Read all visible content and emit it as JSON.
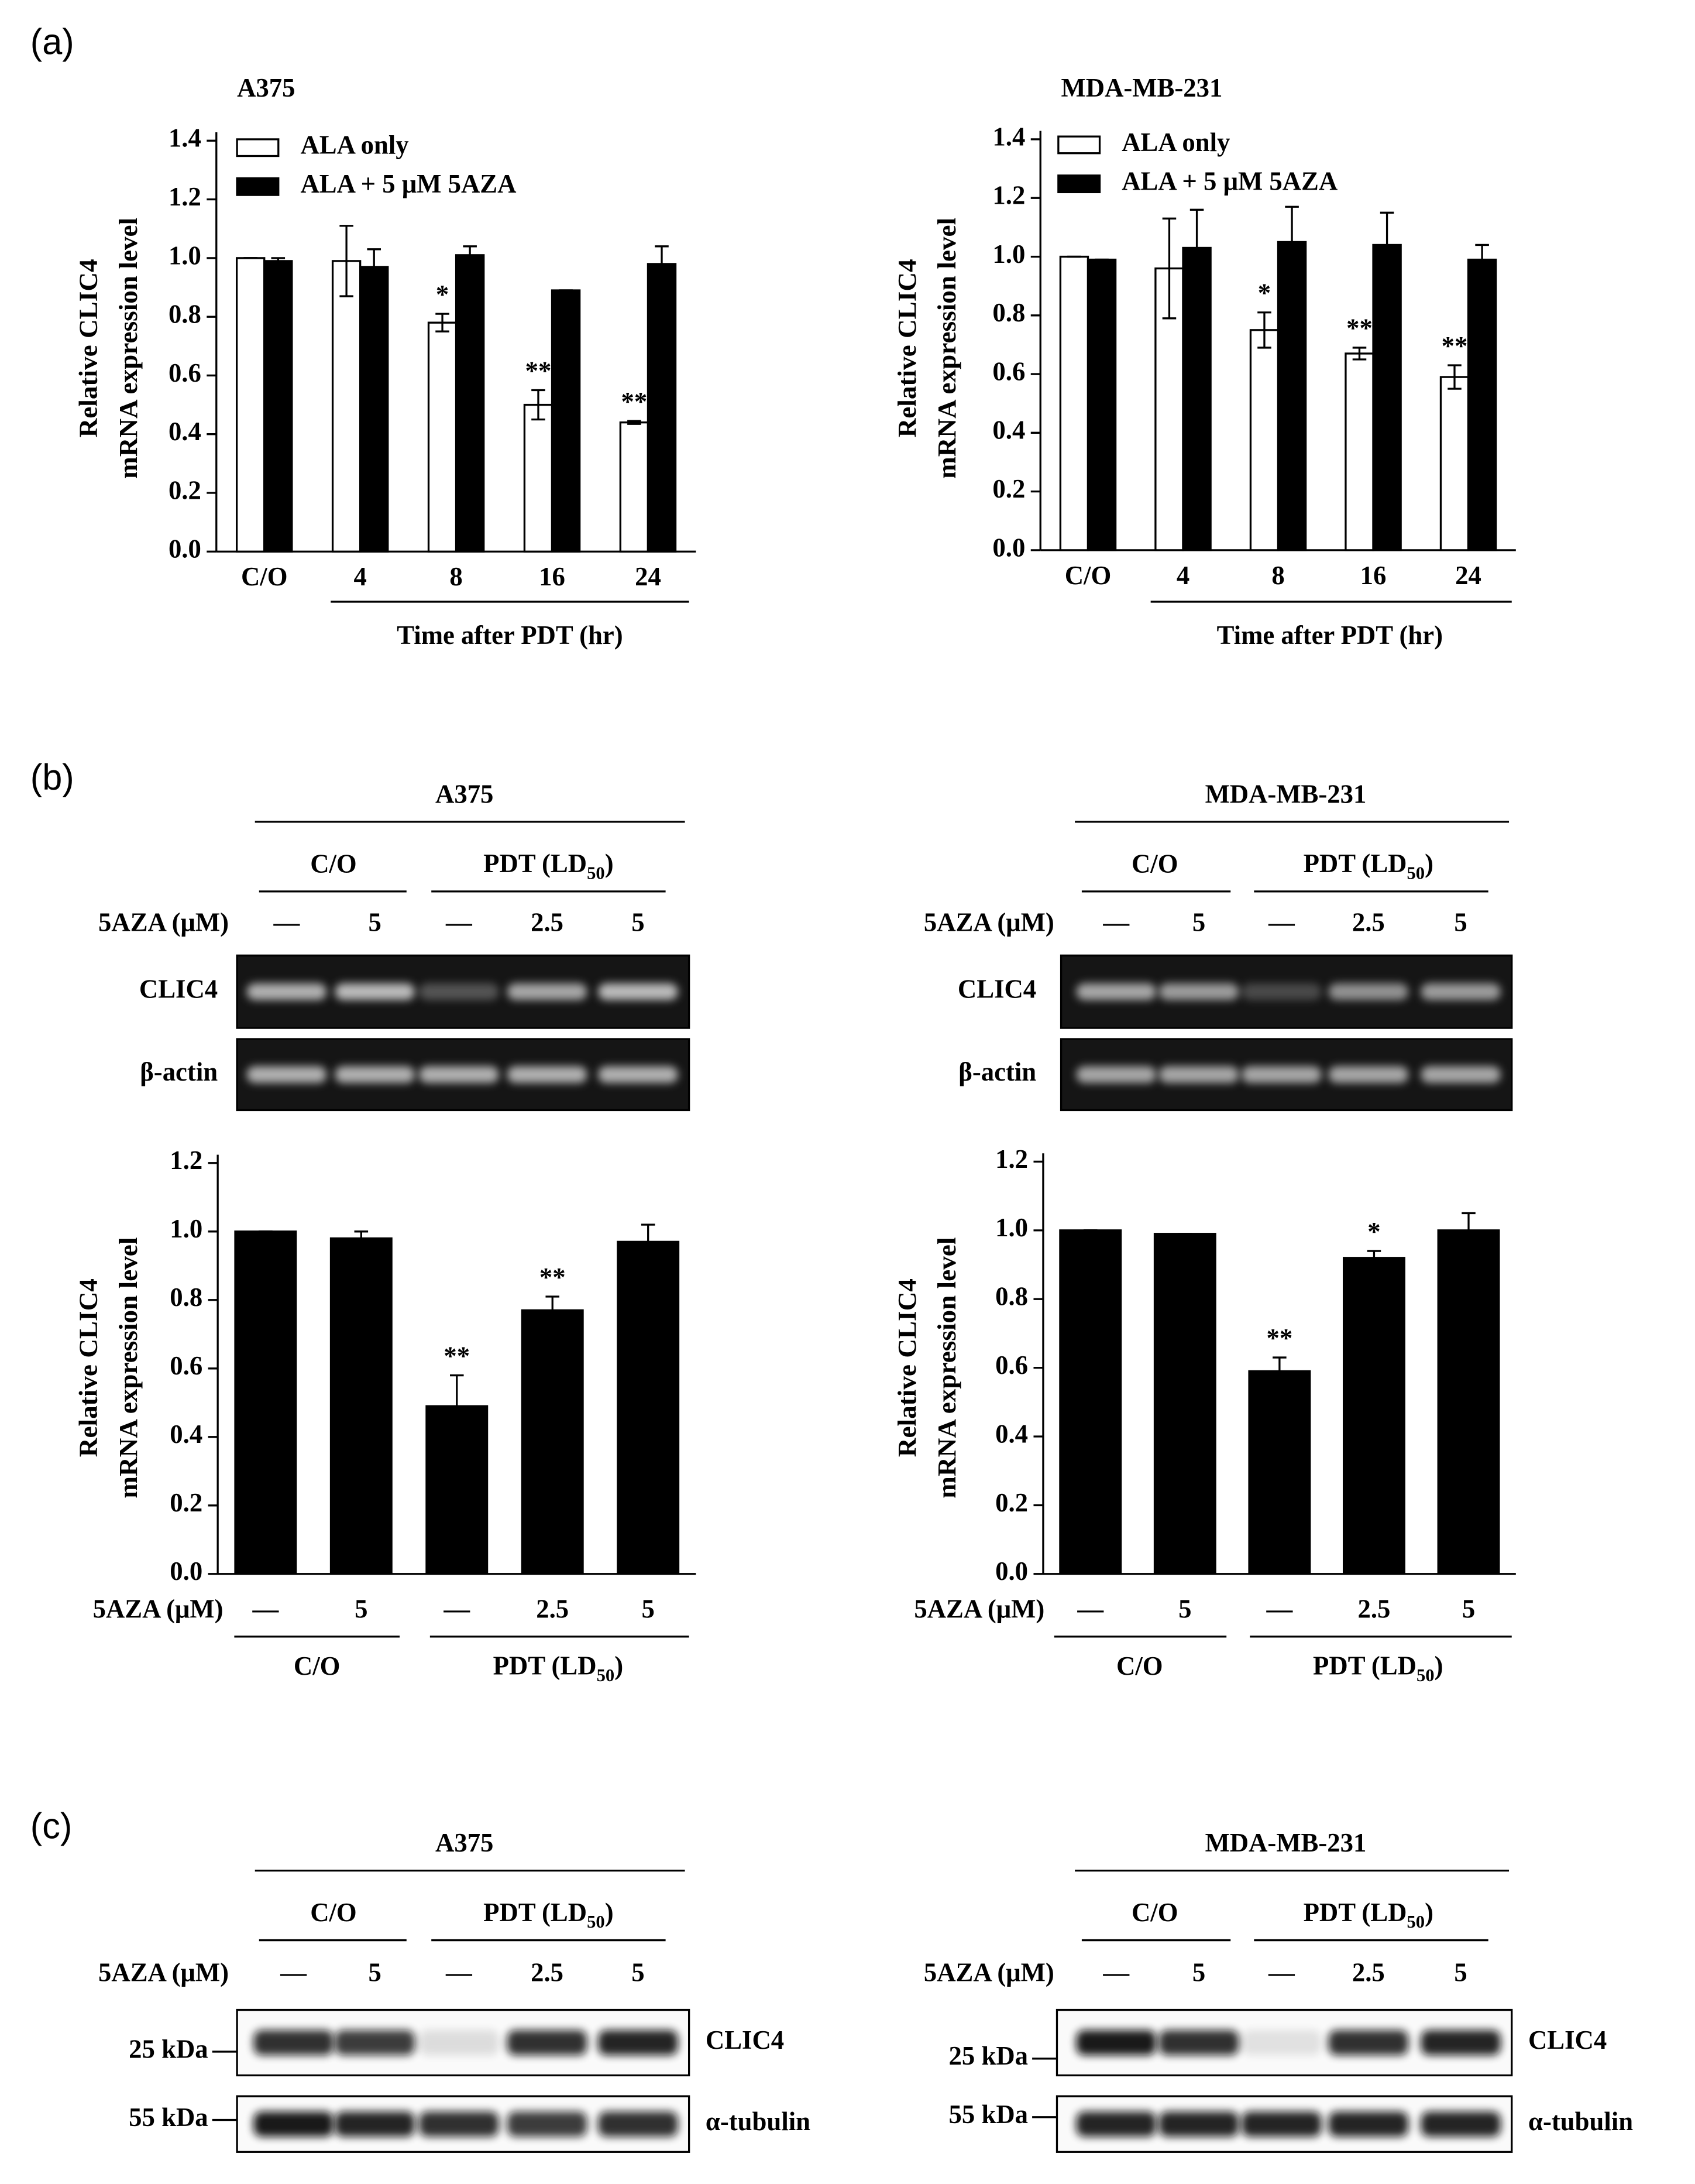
{
  "panel_labels": [
    "(a)",
    "(b)",
    "(c)"
  ],
  "chart_data": [
    {
      "type": "bar",
      "title": "A375",
      "ylabel": [
        "Relative CLIC4",
        "mRNA expression level"
      ],
      "xlabel": "Time after PDT (hr)",
      "categories": [
        "C/O",
        "4",
        "8",
        "16",
        "24"
      ],
      "series": [
        {
          "name": "ALA only",
          "color": "#ffffff",
          "values": [
            1.0,
            0.99,
            0.78,
            0.5,
            0.44
          ],
          "errors": [
            0.0,
            0.12,
            0.03,
            0.05,
            0.005
          ],
          "annotations": [
            null,
            null,
            "*",
            "**",
            "**"
          ]
        },
        {
          "name": "ALA + 5 μM 5AZA",
          "color": "#000000",
          "values": [
            0.99,
            0.97,
            1.01,
            0.89,
            0.98
          ],
          "errors": [
            0.01,
            0.06,
            0.03,
            0.0,
            0.06
          ],
          "annotations": [
            null,
            null,
            null,
            null,
            null
          ]
        }
      ],
      "ylim": [
        0,
        1.4
      ],
      "yticks": [
        {
          "value": 0,
          "label": "0.0"
        },
        {
          "value": 0.2,
          "label": "0.2"
        },
        {
          "value": 0.4,
          "label": "0.4"
        },
        {
          "value": 0.6,
          "label": "0.6"
        },
        {
          "value": 0.8,
          "label": "0.8"
        },
        {
          "value": 1.0,
          "label": "1.0"
        },
        {
          "value": 1.2,
          "label": "1.2"
        },
        {
          "value": 1.4,
          "label": "1.4"
        }
      ],
      "legend": "upper left",
      "grid": false
    },
    {
      "type": "bar",
      "title": "MDA-MB-231",
      "ylabel": [
        "Relative CLIC4",
        "mRNA expression level"
      ],
      "xlabel": "Time after PDT (hr)",
      "categories": [
        "C/O",
        "4",
        "8",
        "16",
        "24"
      ],
      "series": [
        {
          "name": "ALA only",
          "color": "#ffffff",
          "values": [
            1.0,
            0.96,
            0.75,
            0.67,
            0.59
          ],
          "errors": [
            0.0,
            0.17,
            0.06,
            0.02,
            0.04
          ],
          "annotations": [
            null,
            null,
            "*",
            "**",
            "**"
          ]
        },
        {
          "name": "ALA + 5 μM 5AZA",
          "color": "#000000",
          "values": [
            0.99,
            1.03,
            1.05,
            1.04,
            0.99
          ],
          "errors": [
            0.0,
            0.13,
            0.12,
            0.11,
            0.05
          ],
          "annotations": [
            null,
            null,
            null,
            null,
            null
          ]
        }
      ],
      "ylim": [
        0,
        1.4
      ],
      "yticks": [
        {
          "value": 0,
          "label": "0.0"
        },
        {
          "value": 0.2,
          "label": "0.2"
        },
        {
          "value": 0.4,
          "label": "0.4"
        },
        {
          "value": 0.6,
          "label": "0.6"
        },
        {
          "value": 0.8,
          "label": "0.8"
        },
        {
          "value": 1.0,
          "label": "1.0"
        },
        {
          "value": 1.2,
          "label": "1.2"
        },
        {
          "value": 1.4,
          "label": "1.4"
        }
      ],
      "legend": "upper left",
      "grid": false
    },
    {
      "type": "bar",
      "ylabel": [
        "Relative CLIC4",
        "mRNA expression level"
      ],
      "row_label": "5AZA (μM)",
      "categories": [
        "—",
        "5",
        "—",
        "2.5",
        "5"
      ],
      "groups": [
        "C/O",
        [
          "PDT (LD",
          "50",
          ")"
        ]
      ],
      "color": "#000000",
      "values": [
        1.0,
        0.98,
        0.49,
        0.77,
        0.97
      ],
      "errors": [
        0.0,
        0.02,
        0.09,
        0.04,
        0.05
      ],
      "annotations": [
        null,
        null,
        "**",
        "**",
        null
      ],
      "ylim": [
        0,
        1.2
      ],
      "yticks": [
        {
          "value": 0,
          "label": "0.0"
        },
        {
          "value": 0.2,
          "label": "0.2"
        },
        {
          "value": 0.4,
          "label": "0.4"
        },
        {
          "value": 0.6,
          "label": "0.6"
        },
        {
          "value": 0.8,
          "label": "0.8"
        },
        {
          "value": 1.0,
          "label": "1.0"
        },
        {
          "value": 1.2,
          "label": "1.2"
        }
      ],
      "grid": false
    },
    {
      "type": "bar",
      "ylabel": [
        "Relative CLIC4",
        "mRNA expression level"
      ],
      "row_label": "5AZA (μM)",
      "categories": [
        "—",
        "5",
        "—",
        "2.5",
        "5"
      ],
      "groups": [
        "C/O",
        [
          "PDT (LD",
          "50",
          ")"
        ]
      ],
      "color": "#000000",
      "values": [
        1.0,
        0.99,
        0.59,
        0.92,
        1.0
      ],
      "errors": [
        0.0,
        0.0,
        0.04,
        0.02,
        0.05
      ],
      "annotations": [
        null,
        null,
        "**",
        "*",
        null
      ],
      "ylim": [
        0,
        1.2
      ],
      "yticks": [
        {
          "value": 0,
          "label": "0.0"
        },
        {
          "value": 0.2,
          "label": "0.2"
        },
        {
          "value": 0.4,
          "label": "0.4"
        },
        {
          "value": 0.6,
          "label": "0.6"
        },
        {
          "value": 0.8,
          "label": "0.8"
        },
        {
          "value": 1.0,
          "label": "1.0"
        },
        {
          "value": 1.2,
          "label": "1.2"
        }
      ],
      "grid": false
    }
  ],
  "gels": [
    {
      "title": "A375",
      "groups": [
        "C/O",
        [
          "PDT (LD",
          "50",
          ")"
        ]
      ],
      "row_label": "5AZA (μM)",
      "lanes": [
        "—",
        "5",
        "—",
        "2.5",
        "5"
      ],
      "bands": [
        "CLIC4",
        "β-actin"
      ]
    },
    {
      "title": "MDA-MB-231",
      "groups": [
        "C/O",
        [
          "PDT (LD",
          "50",
          ")"
        ]
      ],
      "row_label": "5AZA (μM)",
      "lanes": [
        "—",
        "5",
        "—",
        "2.5",
        "5"
      ],
      "bands": [
        "CLIC4",
        "β-actin"
      ]
    },
    {
      "title": "A375",
      "groups": [
        "C/O",
        [
          "PDT (LD",
          "50",
          ")"
        ]
      ],
      "row_label": "5AZA (μM)",
      "lanes": [
        "—",
        "5",
        "—",
        "2.5",
        "5"
      ],
      "bands": [
        "CLIC4",
        "α-tubulin"
      ],
      "markers": [
        "25 kDa",
        "55 kDa"
      ]
    },
    {
      "title": "MDA-MB-231",
      "groups": [
        "C/O",
        [
          "PDT (LD",
          "50",
          ")"
        ]
      ],
      "row_label": "5AZA (μM)",
      "lanes": [
        "—",
        "5",
        "—",
        "2.5",
        "5"
      ],
      "bands": [
        "CLIC4",
        "α-tubulin"
      ],
      "markers": [
        "25 kDa",
        "55 kDa"
      ]
    }
  ]
}
